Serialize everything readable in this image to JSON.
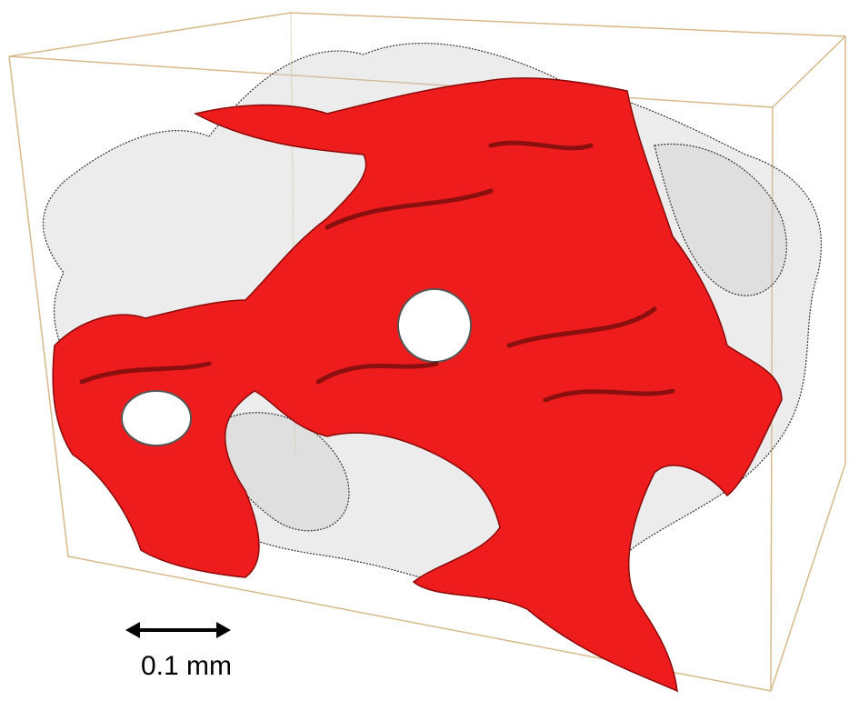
{
  "scale_bar": {
    "label": "0.1 mm"
  }
}
